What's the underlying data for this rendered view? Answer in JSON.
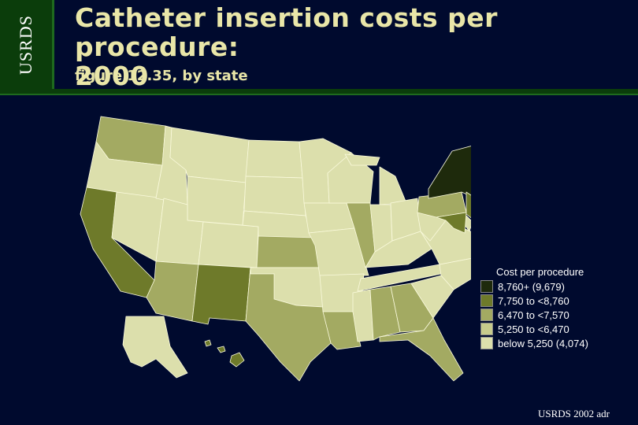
{
  "slide": {
    "tag": "USRDS",
    "title_line1": "Catheter insertion costs per procedure:",
    "title_line2": "2000",
    "subtitle": "figure 12.35, by state",
    "footer": "USRDS 2002 adr"
  },
  "legend": {
    "title": "Cost per procedure",
    "items": [
      {
        "label": "8,760+ (9,679)",
        "color": "#1e2a0c"
      },
      {
        "label": "7,750 to <8,760",
        "color": "#6e7a2a"
      },
      {
        "label": "6,470 to <7,570",
        "color": "#a3aa62"
      },
      {
        "label": "5,250 to <6,470",
        "color": "#c7cb8c"
      },
      {
        "label": "below 5,250 (4,074)",
        "color": "#dcdfac"
      }
    ]
  },
  "map_data": {
    "classes": {
      "top": "#1e2a0c",
      "high": "#6e7a2a",
      "mid": "#a3aa62",
      "lowmid": "#c7cb8c",
      "low": "#dcdfac"
    },
    "states": {
      "WA": "mid",
      "OR": "low",
      "CA": "high",
      "NV": "low",
      "ID": "low",
      "MT": "low",
      "WY": "low",
      "UT": "low",
      "AZ": "mid",
      "CO": "low",
      "NM": "high",
      "ND": "low",
      "SD": "low",
      "NE": "low",
      "KS": "mid",
      "OK": "low",
      "TX": "mid",
      "MN": "low",
      "IA": "low",
      "MO": "low",
      "AR": "low",
      "LA": "mid",
      "WI": "low",
      "IL": "mid",
      "MI": "low",
      "IN": "low",
      "OH": "low",
      "KY": "low",
      "TN": "low",
      "MS": "low",
      "AL": "mid",
      "GA": "mid",
      "FL": "mid",
      "SC": "low",
      "NC": "low",
      "VA": "low",
      "WV": "low",
      "PA": "mid",
      "NY": "top",
      "VT": "low",
      "NH": "low",
      "ME": "low",
      "MA": "mid",
      "RI": "low",
      "CT": "mid",
      "NJ": "high",
      "DE": "low",
      "MD": "high",
      "AK": "low",
      "HI": "high"
    }
  }
}
